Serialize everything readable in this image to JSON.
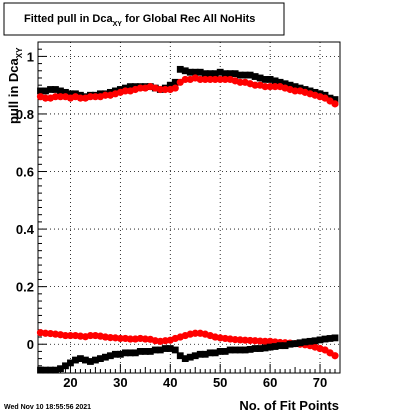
{
  "chart_data": {
    "type": "scatter",
    "title_main": "Fitted pull in Dca",
    "title_sub": "XY",
    "title_rest": " for Global Rec All NoHits",
    "ylabel_main": "pull in Dca",
    "ylabel_sub": "XY",
    "xlabel": "No. of Fit Points",
    "timestamp": "Wed Nov 10 18:55:56 2021",
    "xlim": [
      13.5,
      74
    ],
    "ylim": [
      -0.1,
      1.05
    ],
    "x_ticks": [
      20,
      30,
      40,
      50,
      60,
      70
    ],
    "y_ticks": [
      0,
      0.2,
      0.4,
      0.6,
      0.8,
      1
    ],
    "y_tick_labels": [
      "0",
      "0.2",
      "0.4",
      "0.6",
      "0.8",
      "1"
    ],
    "grid": true,
    "x": [
      14,
      15,
      16,
      17,
      18,
      19,
      20,
      21,
      22,
      23,
      24,
      25,
      26,
      27,
      28,
      29,
      30,
      31,
      32,
      33,
      34,
      35,
      36,
      37,
      38,
      39,
      40,
      41,
      42,
      43,
      44,
      45,
      46,
      47,
      48,
      49,
      50,
      51,
      52,
      53,
      54,
      55,
      56,
      57,
      58,
      59,
      60,
      61,
      62,
      63,
      64,
      65,
      66,
      67,
      68,
      69,
      70,
      71,
      72,
      73
    ],
    "series": [
      {
        "color": "#000000",
        "marker": "square",
        "values": [
          0.88,
          0.88,
          0.885,
          0.885,
          0.88,
          0.875,
          0.87,
          0.87,
          0.865,
          0.86,
          0.865,
          0.865,
          0.87,
          0.87,
          0.875,
          0.88,
          0.885,
          0.89,
          0.895,
          0.895,
          0.895,
          0.895,
          0.895,
          0.89,
          0.885,
          0.89,
          0.9,
          0.91,
          0.955,
          0.95,
          0.945,
          0.945,
          0.945,
          0.94,
          0.94,
          0.94,
          0.945,
          0.94,
          0.94,
          0.94,
          0.935,
          0.935,
          0.935,
          0.93,
          0.925,
          0.92,
          0.92,
          0.915,
          0.91,
          0.905,
          0.9,
          0.895,
          0.89,
          0.885,
          0.88,
          0.875,
          0.87,
          0.865,
          0.855,
          0.85
        ]
      },
      {
        "color": "#ff0000",
        "marker": "circle",
        "values": [
          0.86,
          0.855,
          0.855,
          0.86,
          0.86,
          0.86,
          0.855,
          0.86,
          0.855,
          0.855,
          0.86,
          0.86,
          0.86,
          0.865,
          0.865,
          0.87,
          0.875,
          0.88,
          0.88,
          0.885,
          0.89,
          0.89,
          0.895,
          0.89,
          0.885,
          0.885,
          0.885,
          0.89,
          0.91,
          0.92,
          0.92,
          0.925,
          0.92,
          0.92,
          0.92,
          0.92,
          0.92,
          0.92,
          0.92,
          0.915,
          0.91,
          0.91,
          0.905,
          0.9,
          0.9,
          0.895,
          0.895,
          0.895,
          0.895,
          0.89,
          0.885,
          0.88,
          0.88,
          0.875,
          0.87,
          0.865,
          0.86,
          0.855,
          0.845,
          0.835
        ]
      },
      {
        "color": "#ff0000",
        "marker": "circle",
        "values": [
          0.04,
          0.038,
          0.037,
          0.035,
          0.033,
          0.03,
          0.03,
          0.03,
          0.028,
          0.026,
          0.03,
          0.03,
          0.028,
          0.025,
          0.023,
          0.022,
          0.02,
          0.02,
          0.018,
          0.018,
          0.02,
          0.018,
          0.017,
          0.012,
          0.01,
          0.012,
          0.014,
          0.02,
          0.025,
          0.03,
          0.035,
          0.038,
          0.038,
          0.035,
          0.03,
          0.025,
          0.022,
          0.02,
          0.018,
          0.016,
          0.015,
          0.014,
          0.013,
          0.012,
          0.011,
          0.01,
          0.01,
          0.008,
          0.006,
          0.005,
          0.004,
          0.002,
          0.0,
          -0.002,
          -0.005,
          -0.01,
          -0.015,
          -0.02,
          -0.03,
          -0.04
        ]
      },
      {
        "color": "#000000",
        "marker": "square",
        "values": [
          -0.09,
          -0.09,
          -0.09,
          -0.09,
          -0.085,
          -0.075,
          -0.065,
          -0.055,
          -0.05,
          -0.055,
          -0.06,
          -0.055,
          -0.05,
          -0.045,
          -0.04,
          -0.035,
          -0.035,
          -0.03,
          -0.03,
          -0.03,
          -0.025,
          -0.025,
          -0.025,
          -0.02,
          -0.02,
          -0.015,
          -0.015,
          -0.02,
          -0.04,
          -0.05,
          -0.045,
          -0.04,
          -0.035,
          -0.035,
          -0.03,
          -0.03,
          -0.025,
          -0.025,
          -0.02,
          -0.02,
          -0.02,
          -0.02,
          -0.018,
          -0.015,
          -0.015,
          -0.013,
          -0.01,
          -0.008,
          -0.005,
          -0.005,
          0.0,
          0.002,
          0.005,
          0.008,
          0.01,
          0.012,
          0.015,
          0.018,
          0.02,
          0.022
        ]
      }
    ]
  }
}
